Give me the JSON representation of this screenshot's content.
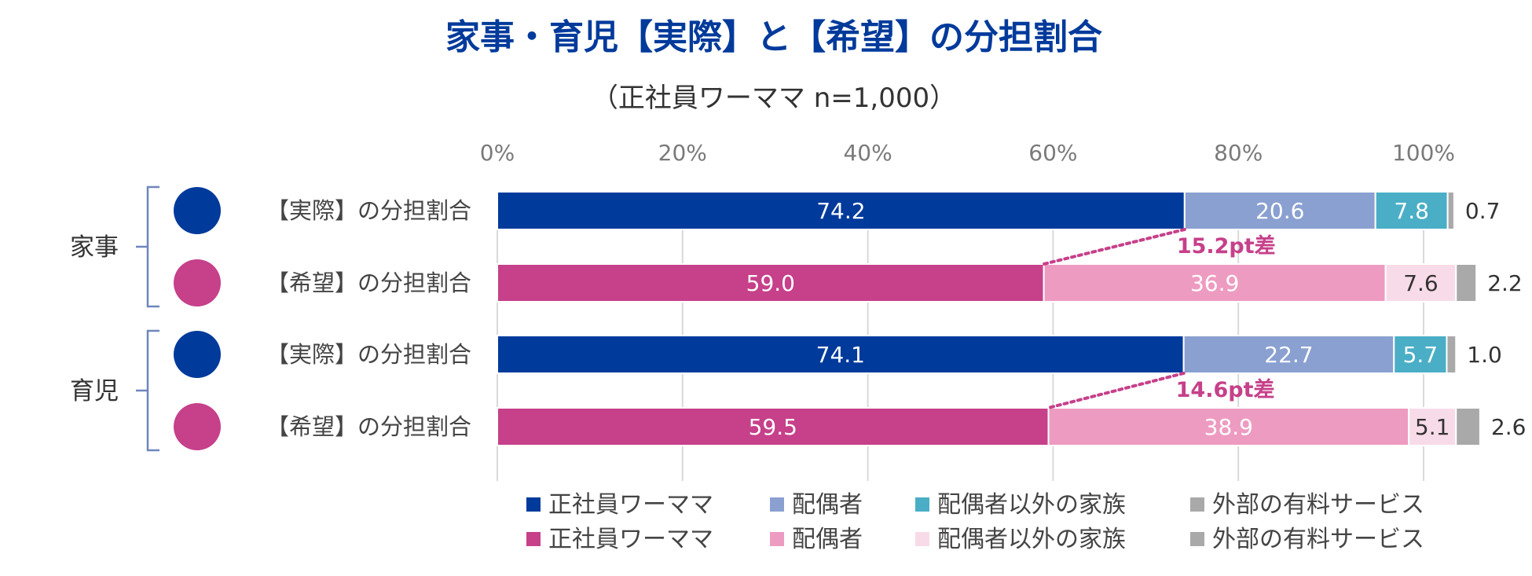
{
  "chart_data": {
    "type": "bar",
    "orientation": "horizontal",
    "stacked": true,
    "title": "家事・育児【実際】と【希望】の分担割合",
    "subtitle": "（正社員ワーママ n=1,000）",
    "xlim": [
      0,
      100
    ],
    "x_ticks": [
      "0%",
      "20%",
      "40%",
      "60%",
      "80%",
      "100%"
    ],
    "x_tick_values": [
      0,
      20,
      40,
      60,
      80,
      100
    ],
    "grid": true,
    "groups": [
      {
        "name": "家事",
        "rows": [
          0,
          1
        ]
      },
      {
        "name": "育児",
        "rows": [
          2,
          3
        ]
      }
    ],
    "rows": [
      {
        "label": "【実際】の分担割合",
        "kind": "actual",
        "values": [
          74.2,
          20.6,
          7.8,
          0.7
        ],
        "value_labels": [
          "74.2",
          "20.6",
          "7.8",
          "0.7"
        ]
      },
      {
        "label": "【希望】の分担割合",
        "kind": "hope",
        "values": [
          59.0,
          36.9,
          7.6,
          2.2
        ],
        "value_labels": [
          "59.0",
          "36.9",
          "7.6",
          "2.2"
        ]
      },
      {
        "label": "【実際】の分担割合",
        "kind": "actual",
        "values": [
          74.1,
          22.7,
          5.7,
          1.0
        ],
        "value_labels": [
          "74.1",
          "22.7",
          "5.7",
          "1.0"
        ]
      },
      {
        "label": "【希望】の分担割合",
        "kind": "hope",
        "values": [
          59.5,
          38.9,
          5.1,
          2.6
        ],
        "value_labels": [
          "59.5",
          "38.9",
          "5.1",
          "2.6"
        ]
      }
    ],
    "series": [
      {
        "name": "正社員ワーママ"
      },
      {
        "name": "配偶者"
      },
      {
        "name": "配偶者以外の家族"
      },
      {
        "name": "外部の有料サービス"
      }
    ],
    "palettes": {
      "actual": [
        "#003a9b",
        "#8aa0d1",
        "#4aaec6",
        "#a9a9a9"
      ],
      "hope": [
        "#c6408a",
        "#ee9bc1",
        "#f8dbe8",
        "#a9a9a9"
      ]
    },
    "label_colors": {
      "actual": [
        "#ffffff",
        "#ffffff",
        "#ffffff",
        "#333333"
      ],
      "hope": [
        "#ffffff",
        "#ffffff",
        "#333333",
        "#333333"
      ]
    },
    "annotations": [
      {
        "text": "15.2pt差",
        "from_row": 0,
        "to_row": 1
      },
      {
        "text": "14.6pt差",
        "from_row": 2,
        "to_row": 3
      }
    ],
    "legend": [
      {
        "kind": "actual",
        "labels": [
          "正社員ワーママ",
          "配偶者",
          "配偶者以外の家族",
          "外部の有料サービス"
        ]
      },
      {
        "kind": "hope",
        "labels": [
          "正社員ワーママ",
          "配偶者",
          "配偶者以外の家族",
          "外部の有料サービス"
        ]
      }
    ],
    "legend_position": "bottom"
  },
  "colors": {
    "title": "#003a9b",
    "annotation": "#c6408a",
    "bracket": "#6f86bd",
    "grid": "#d9d9d9"
  }
}
